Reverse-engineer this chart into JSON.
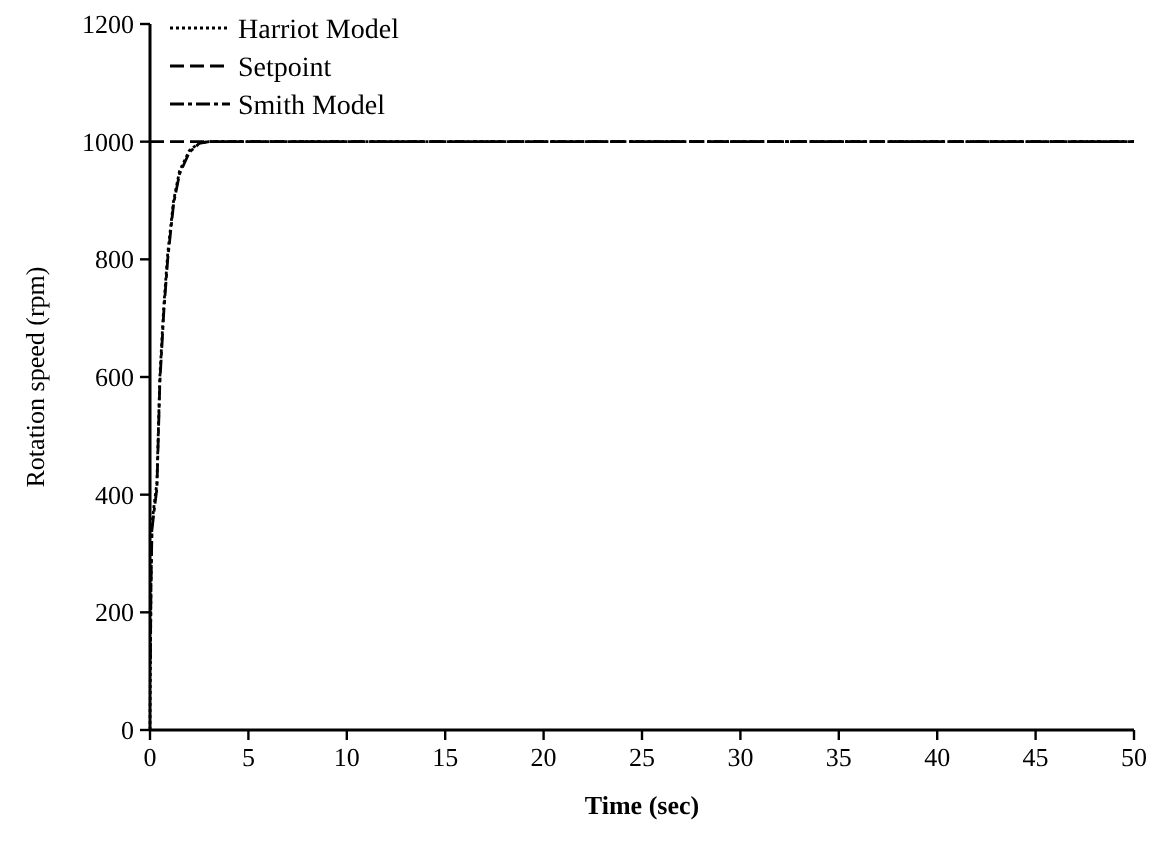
{
  "chart_data": {
    "type": "line",
    "xlabel": "Time (sec)",
    "ylabel": "Rotation speed (rpm)",
    "xlim": [
      0,
      50
    ],
    "ylim": [
      0,
      1200
    ],
    "xticks": [
      0,
      5,
      10,
      15,
      20,
      25,
      30,
      35,
      40,
      45,
      50
    ],
    "yticks": [
      0,
      200,
      400,
      600,
      800,
      1000,
      1200
    ],
    "legend": "top left",
    "grid": false,
    "series": [
      {
        "name": "Harriot Model",
        "color": "#000000",
        "line_style": "dotted",
        "x": [
          0,
          0.05,
          0.1,
          0.2,
          0.35,
          0.5,
          0.7,
          0.9,
          1.2,
          1.5,
          2,
          2.5,
          3,
          5,
          10,
          20,
          30,
          40,
          50
        ],
        "values": [
          0,
          250,
          350,
          380,
          420,
          600,
          720,
          810,
          900,
          950,
          985,
          998,
          1000,
          1000,
          1000,
          1000,
          1000,
          1000,
          1000
        ]
      },
      {
        "name": "Setpoint",
        "color": "#000000",
        "line_style": "dashed",
        "x": [
          0,
          50
        ],
        "values": [
          1000,
          1000
        ]
      },
      {
        "name": "Smith Model",
        "color": "#000000",
        "line_style": "dashdot",
        "x": [
          0.02,
          0.05,
          0.1,
          0.2,
          0.35,
          0.5,
          0.7,
          0.9,
          1.2,
          1.5,
          2,
          2.5,
          3,
          5,
          10,
          20,
          30,
          40,
          50
        ],
        "values": [
          120,
          240,
          340,
          370,
          410,
          590,
          710,
          800,
          895,
          945,
          982,
          997,
          1000,
          1000,
          1000,
          1000,
          1000,
          1000,
          1000
        ]
      }
    ]
  }
}
